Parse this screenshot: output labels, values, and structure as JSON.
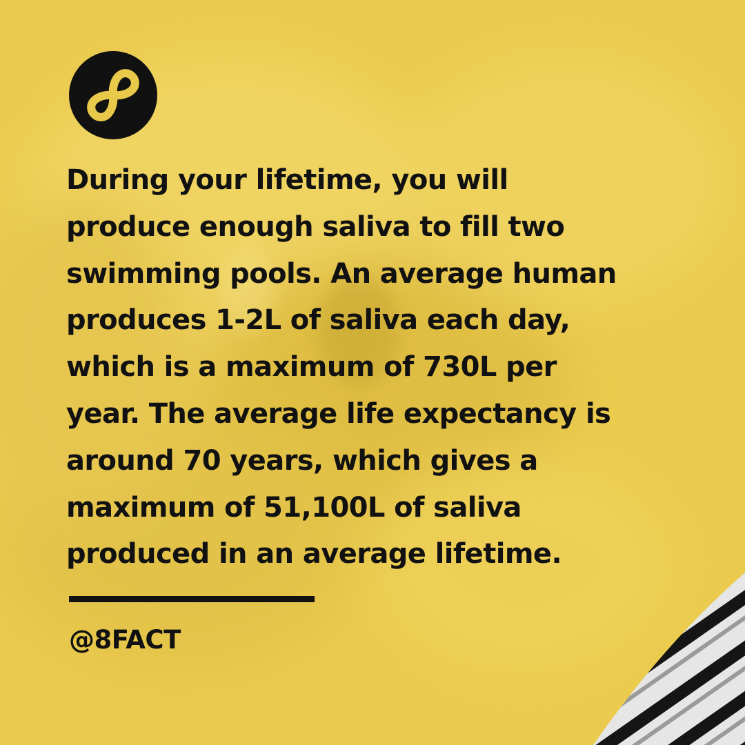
{
  "post": {
    "fact_text": "During your lifetime, you will\nproduce enough saliva to fill two\nswimming pools. An average human\nproduces 1-2L of saliva each day,\nwhich is a maximum of 730L per\nyear. The average life expectancy is\naround 70 years, which gives a\nmaximum of 51,100L of saliva\nproduced in an average lifetime.",
    "handle": "@8FACT"
  },
  "brand": {
    "logo_icon": "infinity-eight-logo-icon",
    "accent_color": "#e9c94a",
    "text_color": "#111111"
  }
}
